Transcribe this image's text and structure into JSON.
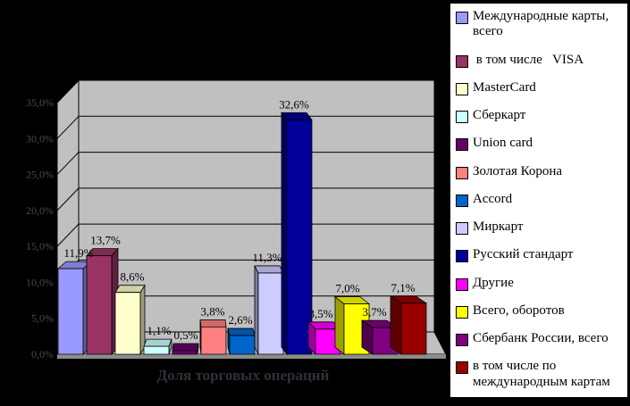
{
  "chart_data": {
    "type": "bar",
    "style": "3d-column",
    "title": "",
    "xlabel": "Доля торговых операций",
    "ylabel": "",
    "ylim": [
      0,
      35
    ],
    "grid": true,
    "legend_position": "right",
    "yticks": [
      {
        "value": 0,
        "label": "0,0%"
      },
      {
        "value": 5,
        "label": "5,0%"
      },
      {
        "value": 10,
        "label": "10,0%"
      },
      {
        "value": 15,
        "label": "15,0%"
      },
      {
        "value": 20,
        "label": "20,0%"
      },
      {
        "value": 25,
        "label": "25,0%"
      },
      {
        "value": 30,
        "label": "30,0%"
      },
      {
        "value": 35,
        "label": "35,0%"
      }
    ],
    "series": [
      {
        "name": "Международные карты, всего",
        "value": 11.9,
        "label": "11,9%",
        "color": "#9999FF"
      },
      {
        "name": " в том числе   VISA",
        "value": 13.7,
        "label": "13,7%",
        "color": "#993366"
      },
      {
        "name": "MasterCard",
        "value": 8.6,
        "label": "8,6%",
        "color": "#FFFFCC"
      },
      {
        "name": "Сберкарт",
        "value": 1.1,
        "label": "1,1%",
        "color": "#CCFFFF"
      },
      {
        "name": "Union card",
        "value": 0.5,
        "label": "0,5%",
        "color": "#660066"
      },
      {
        "name": "Золотая Корона",
        "value": 3.8,
        "label": "3,8%",
        "color": "#FF8080"
      },
      {
        "name": "Accord",
        "value": 2.6,
        "label": "2,6%",
        "color": "#0066CC"
      },
      {
        "name": "Миркарт",
        "value": 11.3,
        "label": "11,3%",
        "color": "#CCCCFF"
      },
      {
        "name": "Русский стандарт",
        "value": 32.6,
        "label": "32,6%",
        "color": "#000099"
      },
      {
        "name": "Другие",
        "value": 3.5,
        "label": "3,5%",
        "color": "#FF00FF"
      },
      {
        "name": "Всего, оборотов",
        "value": 7.0,
        "label": "7,0%",
        "color": "#FFFF00"
      },
      {
        "name": "Сбербанк России, всего",
        "value": 3.7,
        "label": "3,7%",
        "color": "#800080"
      },
      {
        "name": "в том числе по международным картам",
        "value": 7.1,
        "label": "7,1%",
        "color": "#990000"
      }
    ]
  },
  "colors": {
    "background": "#000000",
    "wall": "#C0C0C0",
    "floor_edge": "#8C8C8C",
    "gridline": "#000000",
    "ytick_text": "#4A4A52",
    "xlabel_text": "#30303A",
    "data_label_text": "#000000",
    "legend_background": "#FFFFFF",
    "legend_border": "#000000",
    "legend_text": "#000000"
  }
}
